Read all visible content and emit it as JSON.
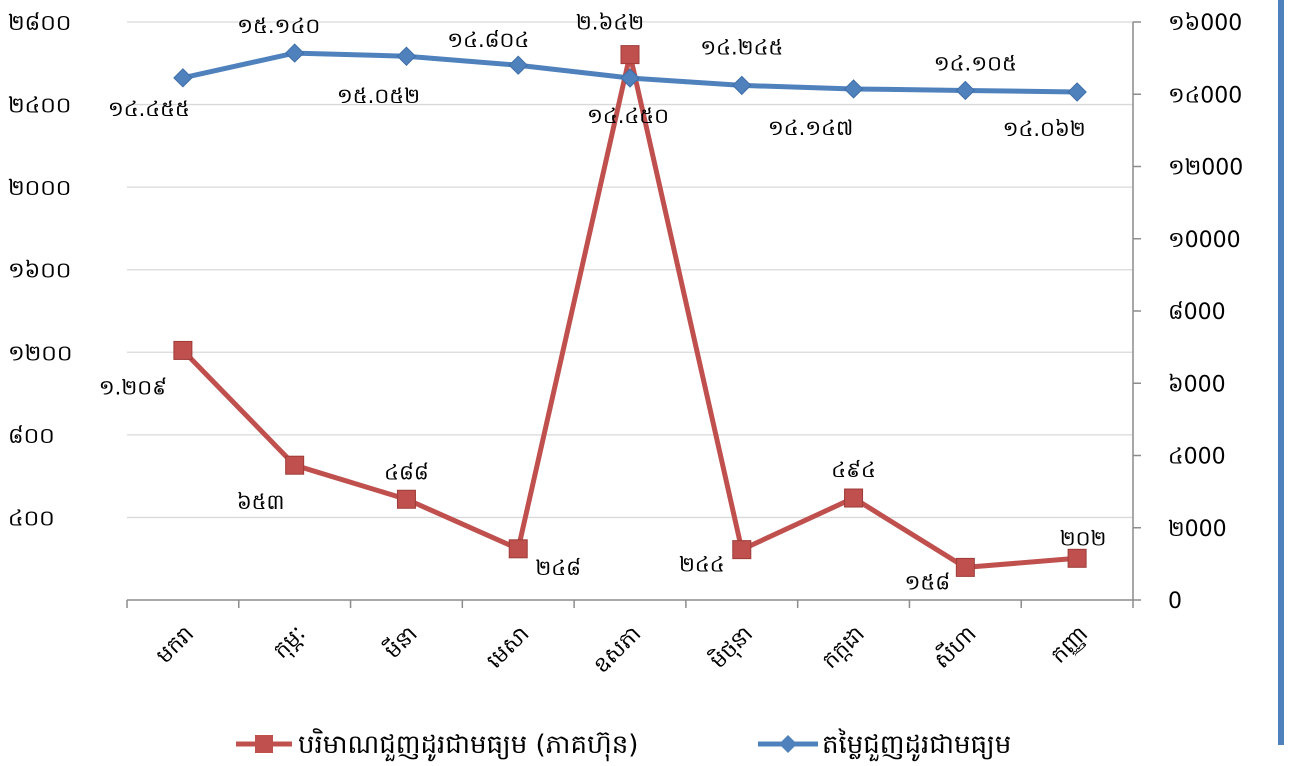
{
  "chart_data": {
    "type": "line",
    "categories": [
      "មករា",
      "កុម្ភៈ",
      "មីនា",
      "មេសា",
      "ឧសភា",
      "មិថុនា",
      "កក្កដា",
      "សីហា",
      "កញ្ញា"
    ],
    "series": [
      {
        "name": "បរិមាណជួញដូរជាមធ្យម (ភាគហ៊ុន)",
        "axis": "left",
        "color": "#c0504d",
        "marker": "square",
        "values": [
          1209,
          653,
          488,
          248,
          2642,
          244,
          494,
          158,
          202
        ],
        "labels": [
          "១.២០៩",
          "៦៥៣",
          "៤៨៨",
          "២៤៨",
          "២.៦៤២",
          "២៤៤",
          "៤៩៤",
          "១៥៨",
          "២០២"
        ]
      },
      {
        "name": "តម្លៃជួញដូរជាមធ្យម",
        "axis": "right",
        "color": "#4f81bd",
        "marker": "diamond",
        "values": [
          14455,
          15140,
          15052,
          14804,
          14450,
          14245,
          14147,
          14105,
          14062
        ],
        "labels": [
          "១៤.៤៥៥",
          "១៥.១៤០",
          "១៥.០៥២",
          "១៤.៨០៤",
          "១៤.៤៥០",
          "១៤.២៤៥",
          "១៤.១៤៧",
          "១៤.១០៥",
          "១៤.០៦២"
        ]
      }
    ],
    "y_left": {
      "range": [
        0,
        2800
      ],
      "ticks": [
        400,
        800,
        1200,
        1600,
        2000,
        2400,
        2800
      ],
      "tick_labels": [
        "៤០០",
        "៨០០",
        "១២០០",
        "១៦០០",
        "២០០០",
        "២៤០០",
        "២៨០០"
      ]
    },
    "y_right": {
      "range": [
        0,
        16000
      ],
      "ticks": [
        0,
        2000,
        4000,
        6000,
        8000,
        10000,
        12000,
        14000,
        16000
      ],
      "tick_labels": [
        "0",
        "២000",
        "៤000",
        "៦000",
        "៨000",
        "១0000",
        "១២000",
        "១៤000",
        "១៦000"
      ]
    },
    "grid": true,
    "legend_position": "bottom",
    "title": "",
    "xlabel": "",
    "ylabel": ""
  }
}
